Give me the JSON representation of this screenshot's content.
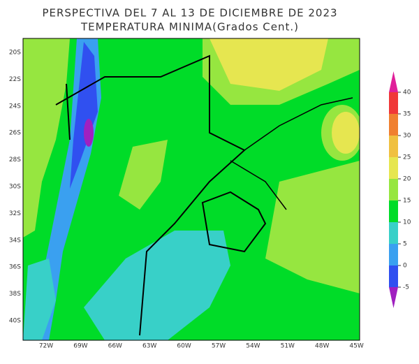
{
  "title": [
    "PERSPECTIVA DEL 7 AL 13 DE DICIEMBRE DE 2023",
    "TEMPERATURA MINIMA(Grados Cent.)"
  ],
  "lat_labels": [
    "20S",
    "22S",
    "24S",
    "26S",
    "28S",
    "30S",
    "32S",
    "34S",
    "36S",
    "38S",
    "40S"
  ],
  "lon_labels": [
    "72W",
    "69W",
    "66W",
    "63W",
    "60W",
    "57W",
    "54W",
    "51W",
    "48W",
    "45W"
  ],
  "colorbar": {
    "ticks": [
      -5,
      0,
      5,
      10,
      15,
      20,
      25,
      30,
      35,
      40
    ],
    "colors": [
      "#a020c0",
      "#3050f0",
      "#3aa0f0",
      "#38d0c8",
      "#00dc28",
      "#96e640",
      "#e6e650",
      "#f0c040",
      "#f08030",
      "#f03838",
      "#e0209a"
    ]
  }
}
